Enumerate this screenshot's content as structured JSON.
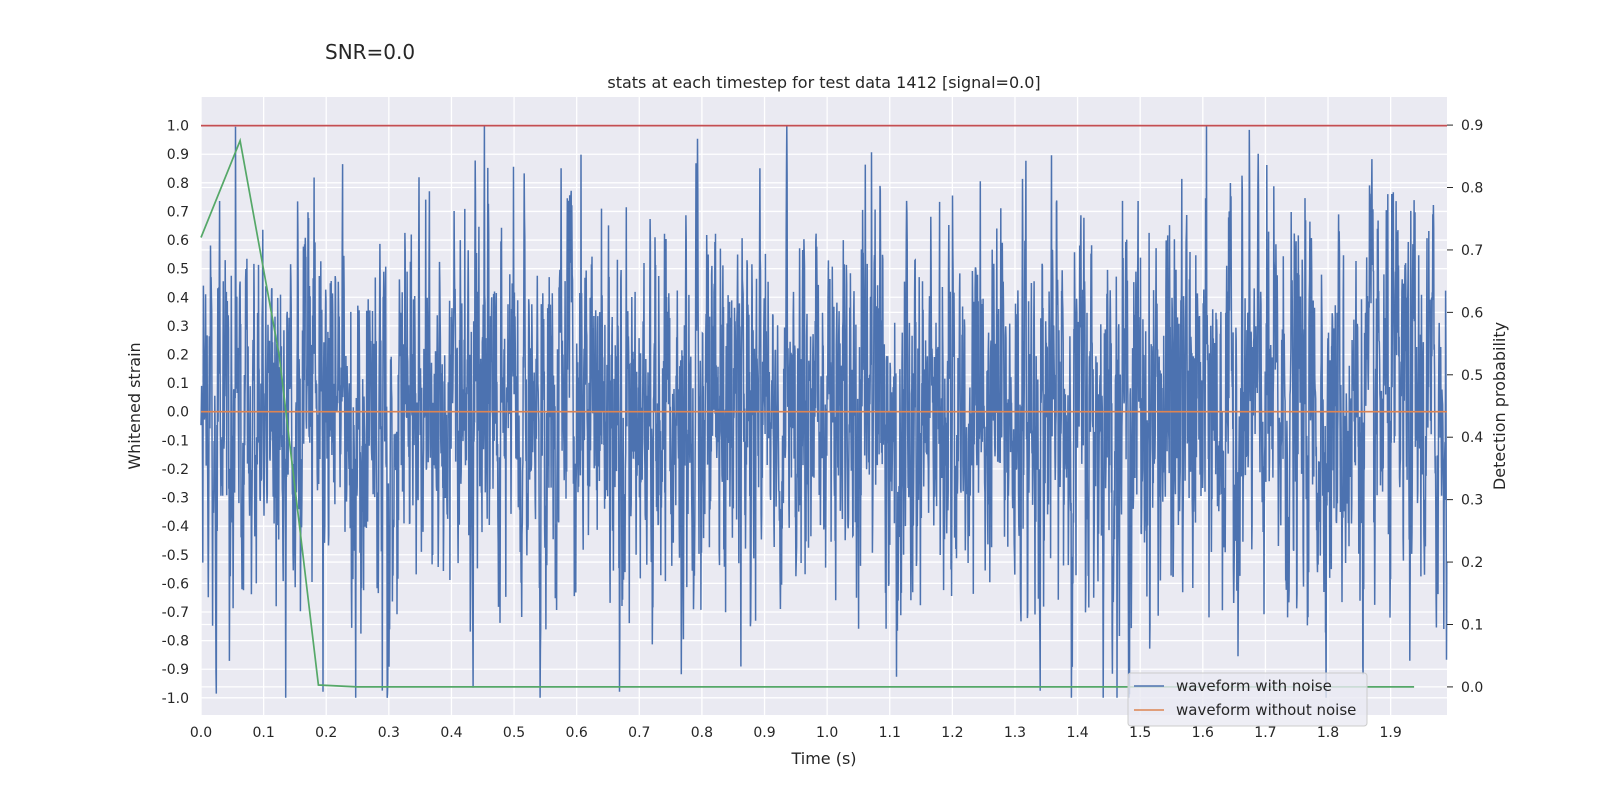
{
  "figure": {
    "suptitle": "SNR=0.0"
  },
  "chart_data": {
    "type": "line",
    "title": "stats at each timestep for test data 1412 [signal=0.0]",
    "xlabel": "Time (s)",
    "ylabel": "Whitened strain",
    "y2label": "Detection probability",
    "xlim": [
      0.0,
      1.99
    ],
    "ylim": [
      -1.06,
      1.1
    ],
    "y2lim": [
      -0.045,
      0.945
    ],
    "xticks": [
      "0.0",
      "0.1",
      "0.2",
      "0.3",
      "0.4",
      "0.5",
      "0.6",
      "0.7",
      "0.8",
      "0.9",
      "1.0",
      "1.1",
      "1.2",
      "1.3",
      "1.4",
      "1.5",
      "1.6",
      "1.7",
      "1.8",
      "1.9"
    ],
    "yticks": [
      "-1.0",
      "-0.9",
      "-0.8",
      "-0.7",
      "-0.6",
      "-0.5",
      "-0.4",
      "-0.3",
      "-0.2",
      "-0.1",
      "0.0",
      "0.1",
      "0.2",
      "0.3",
      "0.4",
      "0.5",
      "0.6",
      "0.7",
      "0.8",
      "0.9",
      "1.0"
    ],
    "y2ticks": [
      "0.0",
      "0.1",
      "0.2",
      "0.3",
      "0.4",
      "0.5",
      "0.6",
      "0.7",
      "0.8",
      "0.9"
    ],
    "grid": true,
    "legend_position": "bottom-right",
    "series": [
      {
        "name": "waveform with noise",
        "axis": "left",
        "color": "#4c72b0",
        "sample_rate": 2048,
        "duration": 2.0,
        "amplitude_std": 0.28,
        "y_range": [
          -1.0,
          1.0
        ],
        "note_values": "dense random noise, values approximately within [-1.0, 1.0]"
      },
      {
        "name": "waveform without noise",
        "axis": "left",
        "color": "#dd8452",
        "x": [
          0.0,
          1.99
        ],
        "y": [
          0.0,
          0.0
        ]
      },
      {
        "name": "",
        "axis": "right",
        "color": "#55a868",
        "x": [
          0.0,
          0.0625,
          0.125,
          0.1875,
          0.25,
          0.3125,
          0.375,
          0.4375,
          0.5,
          0.5625,
          0.625,
          0.6875,
          0.75,
          0.8125,
          0.875,
          0.9375,
          1.0,
          1.0625,
          1.125,
          1.1875,
          1.25,
          1.3125,
          1.375,
          1.4375,
          1.5,
          1.5625,
          1.625,
          1.6875,
          1.75,
          1.8125,
          1.875,
          1.9375
        ],
        "y": [
          0.72,
          0.875,
          0.53,
          0.003,
          0.0,
          0.0,
          0.0,
          0.0,
          0.0,
          0.0,
          0.0,
          0.0,
          0.0,
          0.0,
          0.0,
          0.0,
          0.0,
          0.0,
          0.0,
          0.0,
          0.0,
          0.0,
          0.0,
          0.0,
          0.0,
          0.0,
          0.0,
          0.0,
          0.0,
          0.0,
          0.0,
          0.0
        ]
      },
      {
        "name": "",
        "axis": "left",
        "color": "#c44e52",
        "x": [
          0.0,
          1.99
        ],
        "y": [
          1.0,
          1.0
        ]
      }
    ]
  }
}
